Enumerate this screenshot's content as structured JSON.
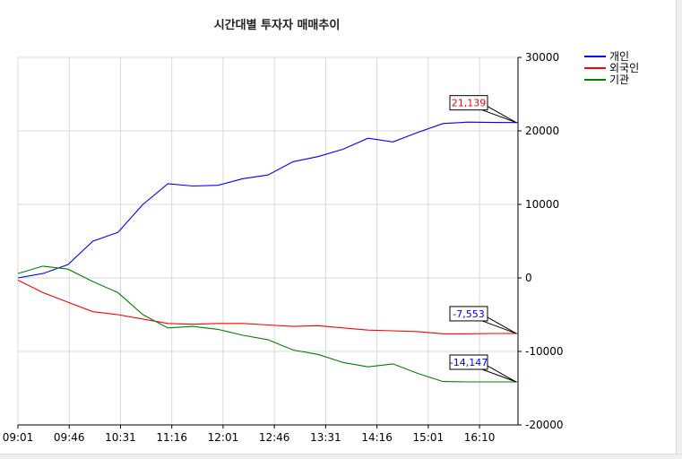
{
  "chart_data": {
    "type": "line",
    "title": "시간대별 투자자 매매추이",
    "x_ticks": [
      "09:01",
      "09:46",
      "10:31",
      "11:16",
      "12:01",
      "12:46",
      "13:31",
      "14:16",
      "15:01",
      "16:10"
    ],
    "y_ticks": [
      "30000",
      "20000",
      "10000",
      "0",
      "-10000",
      "-20000"
    ],
    "ylim": [
      -20000,
      30000
    ],
    "y_axis_side": "right",
    "grid": true,
    "legend_position": "top-right",
    "x": [
      0,
      0.5,
      1,
      1.5,
      2,
      2.5,
      3,
      3.5,
      4,
      4.5,
      5,
      5.5,
      6,
      6.5,
      7,
      7.5,
      8,
      8.5,
      9,
      9.5,
      10
    ],
    "series": [
      {
        "name": "개인",
        "color": "#0000ff",
        "values": [
          0,
          600,
          1800,
          5000,
          6200,
          10000,
          12800,
          12500,
          12600,
          13500,
          14000,
          15800,
          16500,
          17500,
          19000,
          18500,
          19800,
          21000,
          21200,
          21150,
          21139
        ],
        "end_label": "21,139",
        "end_label_color": "#ff0000"
      },
      {
        "name": "외국인",
        "color": "#ff0000",
        "values": [
          -300,
          -2000,
          -3300,
          -4600,
          -5000,
          -5600,
          -6200,
          -6300,
          -6200,
          -6200,
          -6400,
          -6600,
          -6500,
          -6800,
          -7100,
          -7200,
          -7300,
          -7600,
          -7600,
          -7560,
          -7553
        ],
        "end_label": "-7,553",
        "end_label_color": "#0000ff"
      },
      {
        "name": "기관",
        "color": "#008000",
        "values": [
          600,
          1600,
          1200,
          -500,
          -2000,
          -5000,
          -6800,
          -6600,
          -7000,
          -7800,
          -8400,
          -9800,
          -10400,
          -11500,
          -12100,
          -11700,
          -13000,
          -14100,
          -14150,
          -14150,
          -14147
        ],
        "end_label": "-14,147",
        "end_label_color": "#0000ff"
      }
    ]
  }
}
